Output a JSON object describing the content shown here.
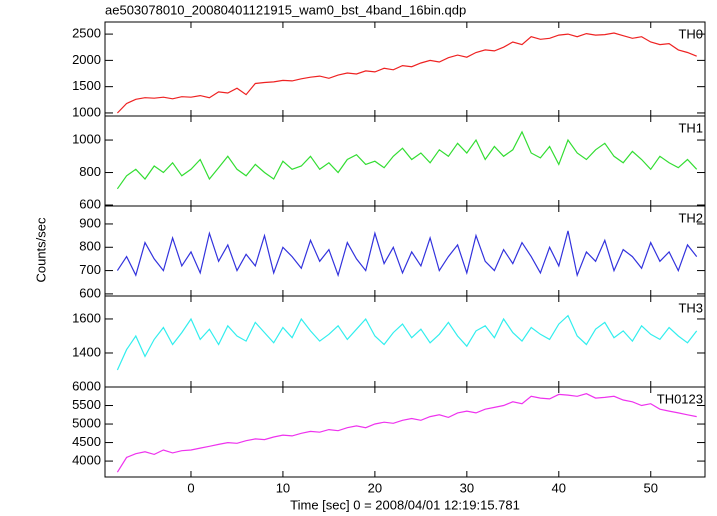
{
  "chart_data": [
    {
      "type": "line",
      "title": "ae503078010_20080401121915_wam0_bst_4band_16bin.qdp",
      "name": "TH0",
      "color": "#ee2222",
      "x": [
        -8,
        -7,
        -6,
        -5,
        -4,
        -3,
        -2,
        -1,
        0,
        1,
        2,
        3,
        4,
        5,
        6,
        7,
        8,
        9,
        10,
        11,
        12,
        13,
        14,
        15,
        16,
        17,
        18,
        19,
        20,
        21,
        22,
        23,
        24,
        25,
        26,
        27,
        28,
        29,
        30,
        31,
        32,
        33,
        34,
        35,
        36,
        37,
        38,
        39,
        40,
        41,
        42,
        43,
        44,
        45,
        46,
        47,
        48,
        49,
        50,
        51,
        52,
        53,
        54,
        55
      ],
      "values": [
        1000,
        1180,
        1260,
        1290,
        1280,
        1300,
        1270,
        1310,
        1300,
        1330,
        1290,
        1400,
        1380,
        1470,
        1350,
        1560,
        1580,
        1590,
        1620,
        1610,
        1650,
        1680,
        1700,
        1660,
        1720,
        1760,
        1740,
        1800,
        1780,
        1850,
        1820,
        1900,
        1880,
        1950,
        2000,
        1970,
        2050,
        2100,
        2060,
        2150,
        2200,
        2180,
        2250,
        2350,
        2300,
        2450,
        2400,
        2420,
        2480,
        2500,
        2450,
        2510,
        2480,
        2490,
        2520,
        2470,
        2420,
        2450,
        2350,
        2300,
        2320,
        2200,
        2150,
        2080
      ],
      "xlim": [
        -9.35,
        55.9
      ],
      "xticks": [
        0,
        10,
        20,
        30,
        40,
        50
      ],
      "ylim": [
        942,
        2730
      ],
      "yticks": [
        1000,
        1500,
        2000,
        2500
      ]
    },
    {
      "type": "line",
      "name": "TH1",
      "color": "#33dd33",
      "x": [
        -8,
        -7,
        -6,
        -5,
        -4,
        -3,
        -2,
        -1,
        0,
        1,
        2,
        3,
        4,
        5,
        6,
        7,
        8,
        9,
        10,
        11,
        12,
        13,
        14,
        15,
        16,
        17,
        18,
        19,
        20,
        21,
        22,
        23,
        24,
        25,
        26,
        27,
        28,
        29,
        30,
        31,
        32,
        33,
        34,
        35,
        36,
        37,
        38,
        39,
        40,
        41,
        42,
        43,
        44,
        45,
        46,
        47,
        48,
        49,
        50,
        51,
        52,
        53,
        54,
        55
      ],
      "values": [
        700,
        780,
        820,
        760,
        840,
        800,
        860,
        780,
        820,
        880,
        760,
        830,
        900,
        820,
        780,
        850,
        800,
        760,
        870,
        820,
        840,
        900,
        820,
        860,
        800,
        880,
        910,
        850,
        870,
        830,
        900,
        950,
        880,
        920,
        860,
        940,
        900,
        980,
        920,
        1000,
        880,
        960,
        900,
        940,
        1050,
        920,
        890,
        960,
        850,
        1000,
        920,
        880,
        940,
        980,
        900,
        860,
        930,
        880,
        820,
        900,
        860,
        830,
        880,
        820
      ],
      "xlim": [
        -9.35,
        55.9
      ],
      "xticks": [
        0,
        10,
        20,
        30,
        40,
        50
      ],
      "ylim": [
        594,
        1148
      ],
      "yticks": [
        600,
        800,
        1000
      ]
    },
    {
      "type": "line",
      "name": "TH2",
      "color": "#3333dd",
      "ylabel": "Counts/sec",
      "x": [
        -8,
        -7,
        -6,
        -5,
        -4,
        -3,
        -2,
        -1,
        0,
        1,
        2,
        3,
        4,
        5,
        6,
        7,
        8,
        9,
        10,
        11,
        12,
        13,
        14,
        15,
        16,
        17,
        18,
        19,
        20,
        21,
        22,
        23,
        24,
        25,
        26,
        27,
        28,
        29,
        30,
        31,
        32,
        33,
        34,
        35,
        36,
        37,
        38,
        39,
        40,
        41,
        42,
        43,
        44,
        45,
        46,
        47,
        48,
        49,
        50,
        51,
        52,
        53,
        54,
        55
      ],
      "values": [
        700,
        760,
        680,
        820,
        750,
        700,
        840,
        720,
        780,
        690,
        860,
        740,
        810,
        700,
        770,
        720,
        850,
        690,
        800,
        760,
        710,
        830,
        740,
        790,
        680,
        820,
        750,
        700,
        860,
        730,
        800,
        690,
        780,
        720,
        840,
        700,
        760,
        810,
        690,
        850,
        740,
        700,
        790,
        730,
        820,
        760,
        690,
        800,
        720,
        870,
        680,
        780,
        740,
        830,
        700,
        790,
        760,
        710,
        820,
        740,
        780,
        700,
        810,
        760
      ],
      "xlim": [
        -9.35,
        55.9
      ],
      "xticks": [
        0,
        10,
        20,
        30,
        40,
        50
      ],
      "ylim": [
        591,
        977
      ],
      "yticks": [
        600,
        700,
        800,
        900
      ]
    },
    {
      "type": "line",
      "name": "TH3",
      "color": "#33eeee",
      "x": [
        -8,
        -7,
        -6,
        -5,
        -4,
        -3,
        -2,
        -1,
        0,
        1,
        2,
        3,
        4,
        5,
        6,
        7,
        8,
        9,
        10,
        11,
        12,
        13,
        14,
        15,
        16,
        17,
        18,
        19,
        20,
        21,
        22,
        23,
        24,
        25,
        26,
        27,
        28,
        29,
        30,
        31,
        32,
        33,
        34,
        35,
        36,
        37,
        38,
        39,
        40,
        41,
        42,
        43,
        44,
        45,
        46,
        47,
        48,
        49,
        50,
        51,
        52,
        53,
        54,
        55
      ],
      "values": [
        1300,
        1420,
        1500,
        1380,
        1480,
        1550,
        1450,
        1520,
        1600,
        1480,
        1540,
        1450,
        1560,
        1500,
        1470,
        1580,
        1520,
        1460,
        1550,
        1490,
        1600,
        1530,
        1470,
        1510,
        1560,
        1480,
        1540,
        1600,
        1500,
        1450,
        1520,
        1570,
        1490,
        1540,
        1460,
        1510,
        1580,
        1500,
        1440,
        1530,
        1560,
        1490,
        1600,
        1520,
        1470,
        1550,
        1510,
        1480,
        1570,
        1620,
        1500,
        1450,
        1540,
        1580,
        1490,
        1530,
        1470,
        1560,
        1510,
        1480,
        1550,
        1500,
        1460,
        1530
      ],
      "xlim": [
        -9.35,
        55.9
      ],
      "xticks": [
        0,
        10,
        20,
        30,
        40,
        50
      ],
      "ylim": [
        1200,
        1735
      ],
      "yticks": [
        1400,
        1600
      ]
    },
    {
      "type": "line",
      "name": "TH0123",
      "color": "#ee33ee",
      "xlabel": "Time [sec] 0 = 2008/04/01 12:19:15.781",
      "x": [
        -8,
        -7,
        -6,
        -5,
        -4,
        -3,
        -2,
        -1,
        0,
        1,
        2,
        3,
        4,
        5,
        6,
        7,
        8,
        9,
        10,
        11,
        12,
        13,
        14,
        15,
        16,
        17,
        18,
        19,
        20,
        21,
        22,
        23,
        24,
        25,
        26,
        27,
        28,
        29,
        30,
        31,
        32,
        33,
        34,
        35,
        36,
        37,
        38,
        39,
        40,
        41,
        42,
        43,
        44,
        45,
        46,
        47,
        48,
        49,
        50,
        51,
        52,
        53,
        54,
        55
      ],
      "values": [
        3700,
        4100,
        4200,
        4250,
        4180,
        4300,
        4220,
        4280,
        4300,
        4350,
        4400,
        4450,
        4500,
        4480,
        4550,
        4600,
        4580,
        4650,
        4700,
        4680,
        4750,
        4800,
        4780,
        4850,
        4820,
        4900,
        4950,
        4900,
        5000,
        5050,
        5020,
        5100,
        5150,
        5100,
        5200,
        5250,
        5180,
        5300,
        5350,
        5300,
        5400,
        5450,
        5500,
        5600,
        5550,
        5750,
        5700,
        5680,
        5800,
        5780,
        5750,
        5820,
        5700,
        5720,
        5750,
        5650,
        5600,
        5500,
        5550,
        5400,
        5350,
        5300,
        5250,
        5200
      ],
      "xlim": [
        -9.35,
        55.9
      ],
      "xticks": [
        0,
        10,
        20,
        30,
        40,
        50
      ],
      "ylim": [
        3570,
        6000
      ],
      "yticks": [
        4000,
        4500,
        5000,
        5500,
        6000
      ]
    }
  ]
}
